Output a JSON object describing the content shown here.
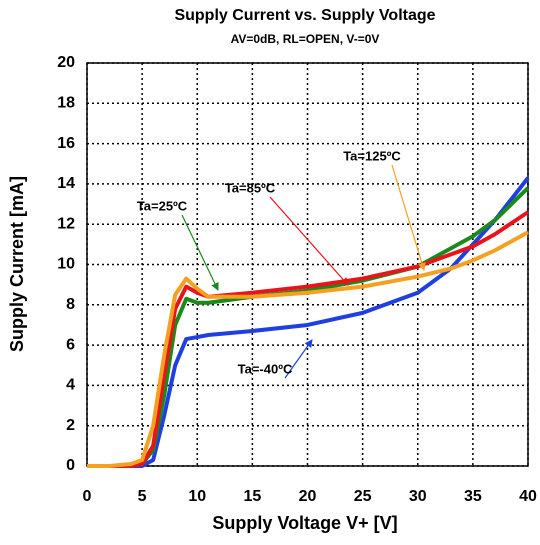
{
  "chart_data": {
    "type": "line",
    "title": "Supply Current vs. Supply Voltage",
    "subtitle": "AV=0dB, RL=OPEN, V-=0V",
    "x_label": "Supply Voltage V+ [V]",
    "y_label": "Supply Current [mA]",
    "x": [
      0,
      2,
      4,
      5,
      6,
      7,
      8,
      9,
      10,
      11,
      15,
      20,
      25,
      30,
      33,
      35,
      37,
      40
    ],
    "series": [
      {
        "name": "Ta=-40ºC",
        "color": "#1f3fe0",
        "values": [
          0,
          0,
          0,
          0,
          0.3,
          2.5,
          5,
          6.3,
          6.4,
          6.5,
          6.7,
          7.0,
          7.6,
          8.6,
          9.8,
          11.0,
          12.2,
          14.3
        ]
      },
      {
        "name": "Ta=25ºC",
        "color": "#1a8a1a",
        "values": [
          0,
          0,
          0,
          0.1,
          0.8,
          3.5,
          7,
          8.3,
          8.1,
          8.1,
          8.4,
          8.7,
          9.2,
          9.9,
          10.8,
          11.4,
          12.2,
          13.8
        ]
      },
      {
        "name": "Ta=85ºC",
        "color": "#e8141a",
        "values": [
          0,
          0,
          0,
          0.1,
          1,
          4.5,
          7.8,
          8.9,
          8.6,
          8.4,
          8.6,
          8.9,
          9.3,
          9.9,
          10.5,
          10.9,
          11.5,
          12.6
        ]
      },
      {
        "name": "Ta=125ºC",
        "color": "#f5a020",
        "values": [
          0,
          0,
          0.1,
          0.3,
          2,
          5.5,
          8.5,
          9.3,
          8.8,
          8.4,
          8.4,
          8.6,
          8.9,
          9.4,
          9.8,
          10.2,
          10.7,
          11.6
        ]
      }
    ],
    "xlim": [
      0,
      40
    ],
    "xticks": [
      0,
      5,
      10,
      15,
      20,
      25,
      30,
      35,
      40
    ],
    "ylim": [
      0,
      20
    ],
    "yticks": [
      0,
      2,
      4,
      6,
      8,
      10,
      12,
      14,
      16,
      18,
      20
    ],
    "grid": true
  }
}
